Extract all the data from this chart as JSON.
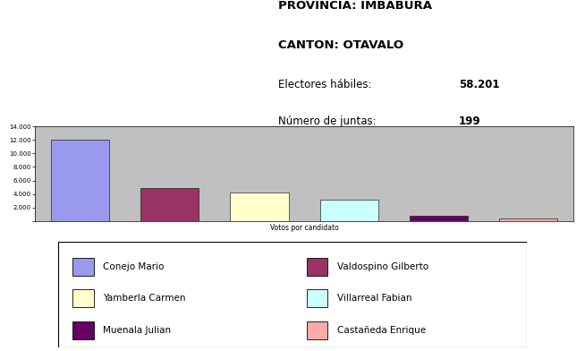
{
  "title_line1": "PROVINCIA: IMBABURA",
  "title_line2": "CANTON: OTAVALO",
  "electores_label": "Electores hábiles:",
  "electores_value": "58.201",
  "juntas_label": "Número de juntas:",
  "juntas_value": "199",
  "candidates": [
    "Conejo Mario",
    "Valdospino Gilberto",
    "Yamberla Carmen",
    "Villarreal Fabian",
    "Muenala Julian",
    "Castañeda Enrique"
  ],
  "values": [
    12000,
    4900,
    4200,
    3200,
    800,
    400
  ],
  "colors": [
    "#9999ee",
    "#993366",
    "#ffffcc",
    "#ccffff",
    "#660066",
    "#ffaaaa"
  ],
  "ylim": [
    0,
    14000
  ],
  "yticks": [
    0,
    2000,
    4000,
    6000,
    8000,
    10000,
    12000,
    14000
  ],
  "ytick_labels": [
    "",
    "2.000",
    "4.000",
    "6.000",
    "8.000",
    "10.000",
    "12.000",
    "14.000"
  ],
  "xlabel": "Votos por candidato",
  "chart_bg": "#c0c0c0",
  "fig_bg": "#ffffff"
}
